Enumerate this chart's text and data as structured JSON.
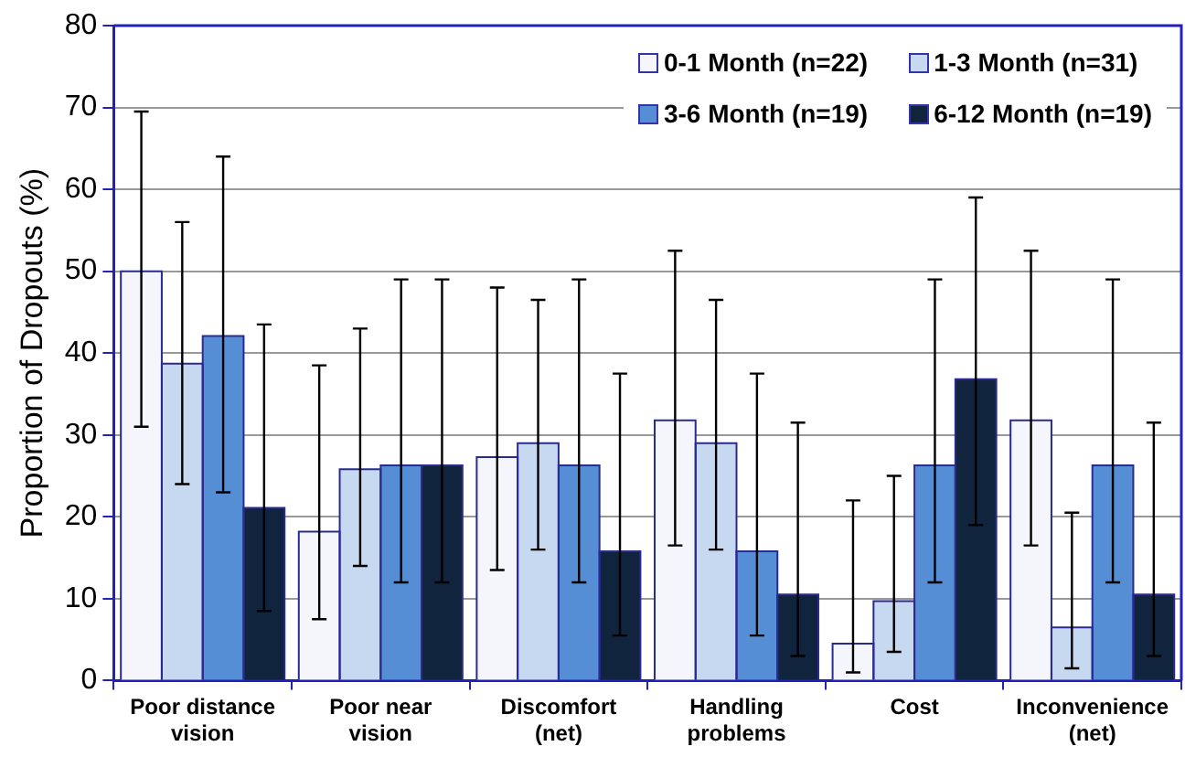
{
  "chart_data": {
    "type": "bar",
    "ylabel": "Proportion of Dropouts (%)",
    "categories": [
      "Poor distance vision",
      "Poor near vision",
      "Discomfort (net)",
      "Handling problems",
      "Cost",
      "Inconvenience (net)"
    ],
    "series": [
      {
        "name": "0-1 Month (n=22)",
        "color": "#f4f6fc",
        "values": [
          50,
          18.2,
          27.3,
          31.8,
          4.5,
          31.8
        ],
        "errors": [
          [
            31,
            69.5
          ],
          [
            7.5,
            38.5
          ],
          [
            13.5,
            48
          ],
          [
            16.5,
            52.5
          ],
          [
            1,
            22
          ],
          [
            16.5,
            52.5
          ]
        ]
      },
      {
        "name": "1-3 Month (n=31)",
        "color": "#c6d9f1",
        "values": [
          38.7,
          25.8,
          29,
          29,
          9.7,
          6.5
        ],
        "errors": [
          [
            24,
            56
          ],
          [
            14,
            43
          ],
          [
            16,
            46.5
          ],
          [
            16,
            46.5
          ],
          [
            3.5,
            25
          ],
          [
            1.5,
            20.5
          ]
        ]
      },
      {
        "name": "3-6 Month (n=19)",
        "color": "#558ed5",
        "values": [
          42.1,
          26.3,
          26.3,
          15.8,
          26.3,
          26.3
        ],
        "errors": [
          [
            23,
            64
          ],
          [
            12,
            49
          ],
          [
            12,
            49
          ],
          [
            5.5,
            37.5
          ],
          [
            12,
            49
          ],
          [
            12,
            49
          ]
        ]
      },
      {
        "name": "6-12 Month (n=19)",
        "color": "#10243e",
        "values": [
          21.1,
          26.3,
          15.8,
          10.5,
          36.8,
          10.5
        ],
        "errors": [
          [
            8.5,
            43.5
          ],
          [
            12,
            49
          ],
          [
            5.5,
            37.5
          ],
          [
            3,
            31.5
          ],
          [
            19,
            59
          ],
          [
            3,
            31.5
          ]
        ]
      }
    ],
    "ylim": [
      0,
      80
    ],
    "yticks": [
      0,
      10,
      20,
      30,
      40,
      50,
      60,
      70,
      80
    ],
    "grid": "y",
    "legend": "top right"
  }
}
